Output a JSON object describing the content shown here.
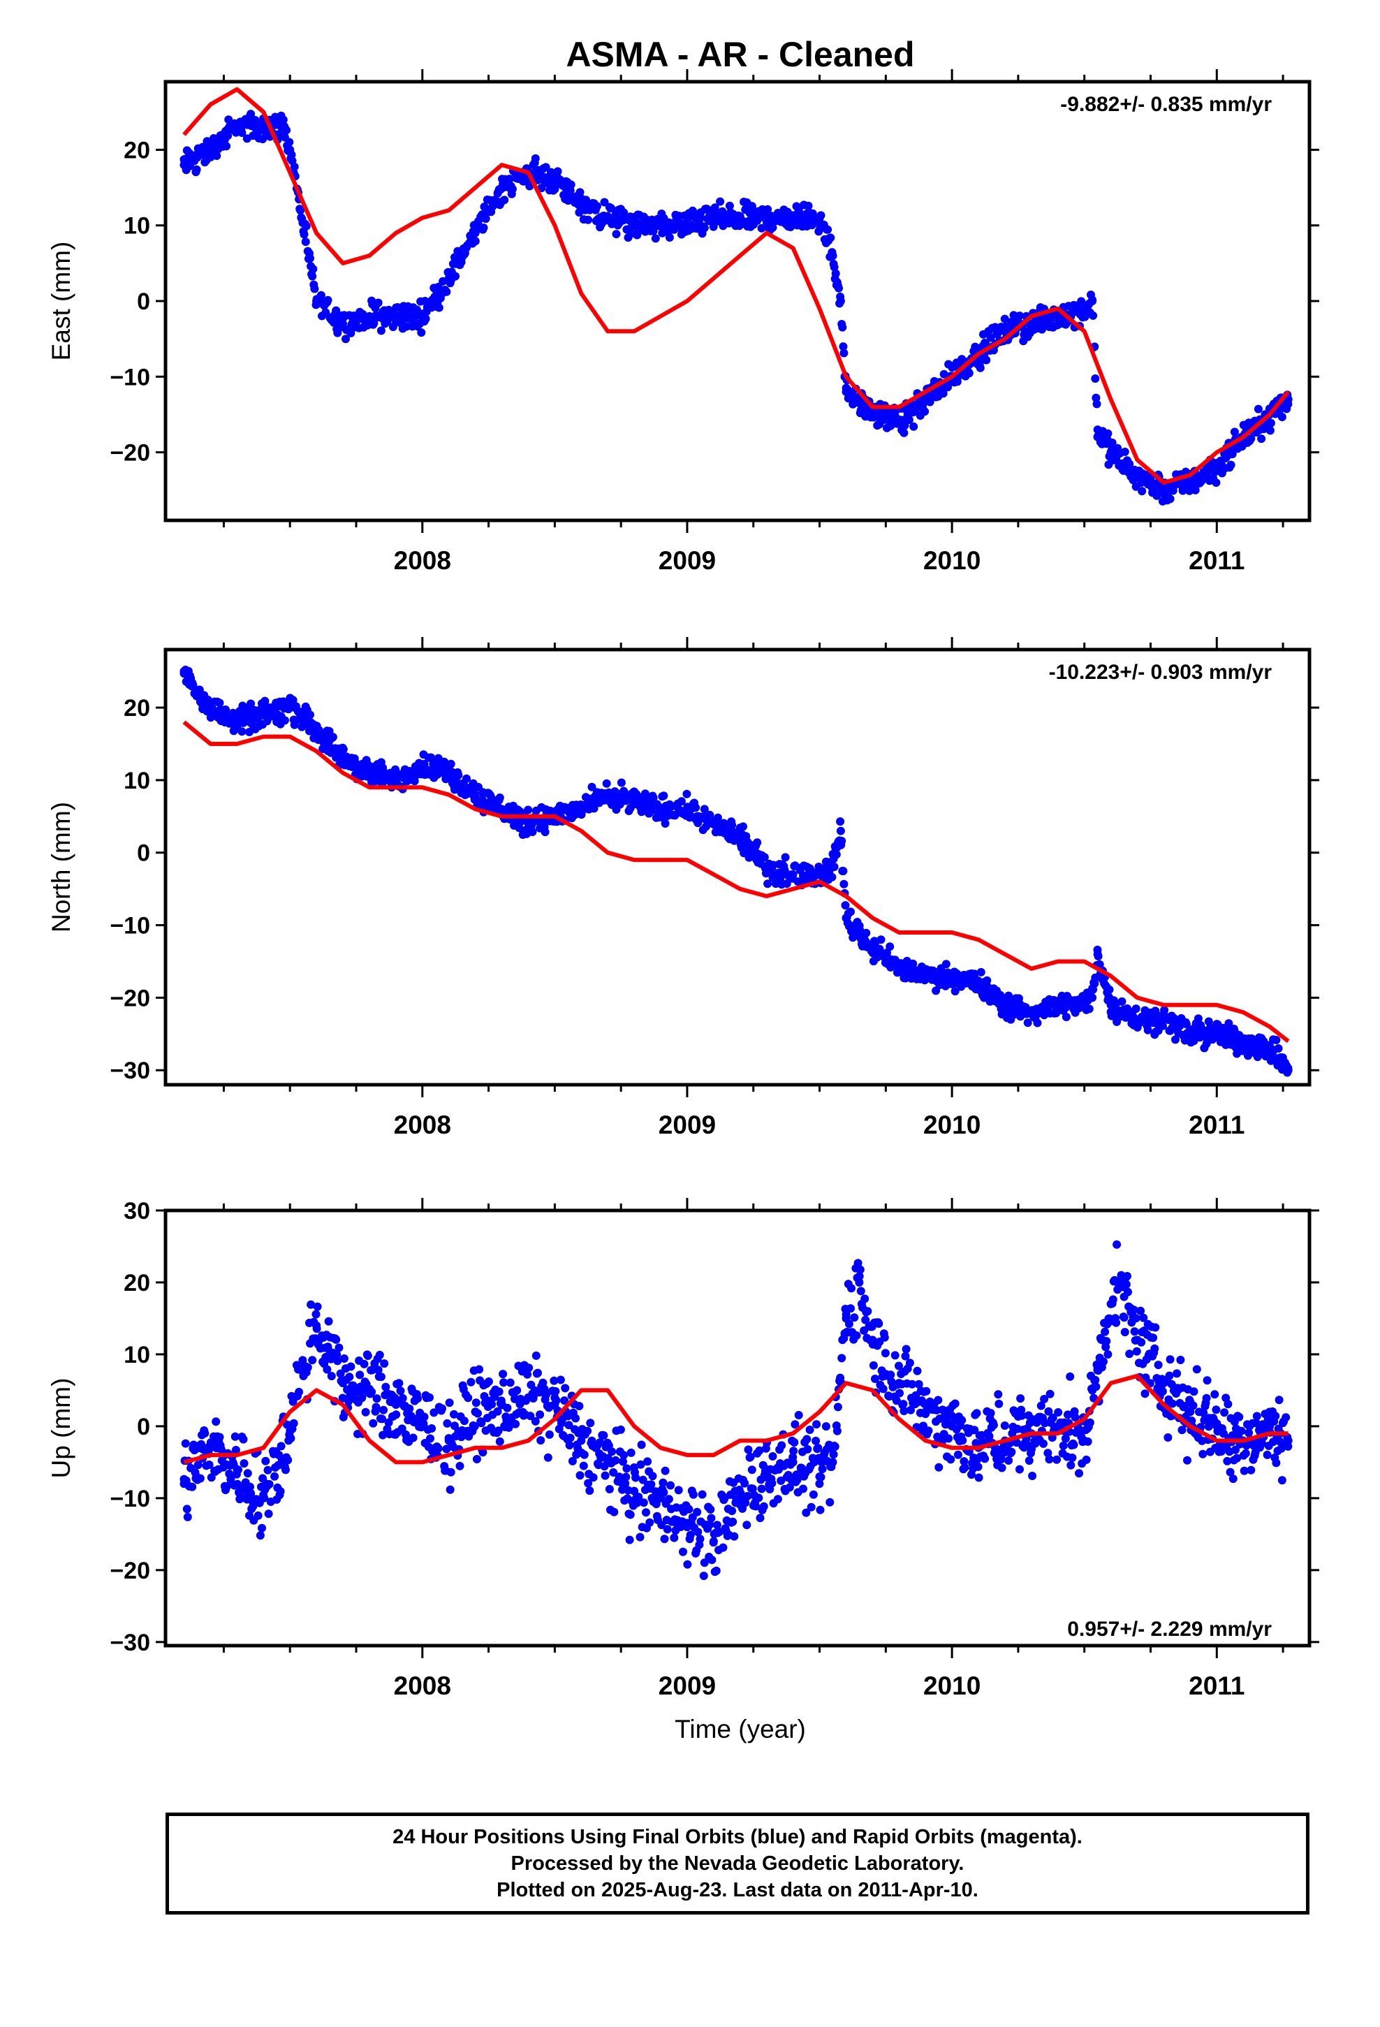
{
  "title": "ASMA  - AR - Cleaned",
  "xlabel": "Time (year)",
  "footer": {
    "line1": "24 Hour Positions Using Final Orbits (blue) and Rapid Orbits (magenta).",
    "line2": "Processed by the Nevada Geodetic Laboratory.",
    "line3": "Plotted on 2025-Aug-23. Last data on 2011-Apr-10."
  },
  "colors": {
    "data": "#0000ff",
    "model": "#ff0000",
    "frame": "#000000"
  },
  "chart_data": [
    {
      "type": "scatter",
      "ylabel": "East (mm)",
      "rate_text": "-9.882+/- 0.835 mm/yr",
      "xlim": [
        2007.03,
        2011.35
      ],
      "ylim": [
        -29,
        29
      ],
      "xticks": [
        2008,
        2009,
        2010,
        2011
      ],
      "yticks": [
        -20,
        -10,
        0,
        10,
        20
      ],
      "series": [
        {
          "kind": "points",
          "x": [
            2007.1,
            2007.2,
            2007.3,
            2007.4,
            2007.48,
            2007.5,
            2007.6,
            2007.7,
            2007.8,
            2007.9,
            2008.0,
            2008.1,
            2008.2,
            2008.3,
            2008.4,
            2008.5,
            2008.6,
            2008.7,
            2008.8,
            2008.9,
            2009.0,
            2009.1,
            2009.2,
            2009.3,
            2009.4,
            2009.5,
            2009.55,
            2009.58,
            2009.6,
            2009.7,
            2009.8,
            2009.9,
            2010.0,
            2010.1,
            2010.2,
            2010.3,
            2010.4,
            2010.5,
            2010.53,
            2010.55,
            2010.6,
            2010.7,
            2010.8,
            2010.9,
            2011.0,
            2011.1,
            2011.2,
            2011.27
          ],
          "y": [
            18,
            20,
            23,
            23,
            23,
            20,
            0,
            -3,
            -2,
            -2,
            -2,
            3,
            9,
            15,
            17,
            16,
            13,
            11,
            10,
            10,
            10,
            11,
            11,
            11,
            11,
            11,
            6,
            0,
            -12,
            -15,
            -16,
            -13,
            -10,
            -7,
            -4,
            -3,
            -2,
            -1,
            0,
            -17,
            -20,
            -23,
            -25,
            -24,
            -22,
            -18,
            -15,
            -13
          ]
        },
        {
          "kind": "line",
          "x": [
            2007.1,
            2007.2,
            2007.3,
            2007.4,
            2007.5,
            2007.6,
            2007.7,
            2007.8,
            2007.9,
            2008.0,
            2008.1,
            2008.2,
            2008.3,
            2008.4,
            2008.5,
            2008.6,
            2008.7,
            2008.8,
            2008.9,
            2009.0,
            2009.1,
            2009.2,
            2009.3,
            2009.4,
            2009.5,
            2009.6,
            2009.7,
            2009.8,
            2009.9,
            2010.0,
            2010.1,
            2010.2,
            2010.3,
            2010.4,
            2010.5,
            2010.6,
            2010.7,
            2010.8,
            2010.9,
            2011.0,
            2011.1,
            2011.2,
            2011.27
          ],
          "y": [
            22,
            26,
            28,
            25,
            17,
            9,
            5,
            6,
            9,
            11,
            12,
            15,
            18,
            17,
            10,
            1,
            -4,
            -4,
            -2,
            0,
            3,
            6,
            9,
            7,
            -1,
            -10,
            -14,
            -14,
            -12,
            -10,
            -7,
            -5,
            -2,
            -1,
            -4,
            -13,
            -21,
            -24,
            -23,
            -20,
            -18,
            -15,
            -12
          ]
        }
      ]
    },
    {
      "type": "scatter",
      "ylabel": "North (mm)",
      "rate_text": "-10.223+/- 0.903 mm/yr",
      "xlim": [
        2007.03,
        2011.35
      ],
      "ylim": [
        -32,
        28
      ],
      "xticks": [
        2008,
        2009,
        2010,
        2011
      ],
      "yticks": [
        -30,
        -20,
        -10,
        0,
        10,
        20
      ],
      "series": [
        {
          "kind": "points",
          "x": [
            2007.1,
            2007.2,
            2007.3,
            2007.4,
            2007.5,
            2007.6,
            2007.7,
            2007.8,
            2007.9,
            2008.0,
            2008.1,
            2008.2,
            2008.3,
            2008.4,
            2008.5,
            2008.6,
            2008.7,
            2008.8,
            2008.9,
            2009.0,
            2009.1,
            2009.2,
            2009.3,
            2009.4,
            2009.5,
            2009.55,
            2009.58,
            2009.6,
            2009.7,
            2009.8,
            2009.9,
            2010.0,
            2010.1,
            2010.2,
            2010.3,
            2010.4,
            2010.5,
            2010.53,
            2010.55,
            2010.6,
            2010.7,
            2010.8,
            2010.9,
            2011.0,
            2011.1,
            2011.2,
            2011.27
          ],
          "y": [
            25,
            20,
            18,
            19,
            20,
            17,
            13,
            11,
            10,
            12,
            11,
            8,
            6,
            4,
            5,
            6,
            8,
            7,
            6,
            6,
            4,
            2,
            -2,
            -3,
            -3,
            -2,
            3,
            -9,
            -13,
            -16,
            -17,
            -17,
            -18,
            -21,
            -22,
            -21,
            -21,
            -20,
            -14,
            -21,
            -23,
            -23,
            -25,
            -25,
            -26,
            -27,
            -30
          ]
        },
        {
          "kind": "line",
          "x": [
            2007.1,
            2007.2,
            2007.3,
            2007.4,
            2007.5,
            2007.6,
            2007.7,
            2007.8,
            2007.9,
            2008.0,
            2008.1,
            2008.2,
            2008.3,
            2008.4,
            2008.5,
            2008.6,
            2008.7,
            2008.8,
            2008.9,
            2009.0,
            2009.1,
            2009.2,
            2009.3,
            2009.4,
            2009.5,
            2009.6,
            2009.7,
            2009.8,
            2009.9,
            2010.0,
            2010.1,
            2010.2,
            2010.3,
            2010.4,
            2010.5,
            2010.6,
            2010.7,
            2010.8,
            2010.9,
            2011.0,
            2011.1,
            2011.2,
            2011.27
          ],
          "y": [
            18,
            15,
            15,
            16,
            16,
            14,
            11,
            9,
            9,
            9,
            8,
            6,
            5,
            5,
            5,
            3,
            0,
            -1,
            -1,
            -1,
            -3,
            -5,
            -6,
            -5,
            -4,
            -6,
            -9,
            -11,
            -11,
            -11,
            -12,
            -14,
            -16,
            -15,
            -15,
            -17,
            -20,
            -21,
            -21,
            -21,
            -22,
            -24,
            -26
          ]
        }
      ]
    },
    {
      "type": "scatter",
      "ylabel": "Up (mm)",
      "rate_text": "0.957+/- 2.229 mm/yr",
      "xlim": [
        2007.03,
        2011.35
      ],
      "ylim": [
        -30.5,
        30
      ],
      "xticks": [
        2008,
        2009,
        2010,
        2011
      ],
      "yticks": [
        -30,
        -20,
        -10,
        0,
        10,
        20,
        30
      ],
      "series": [
        {
          "kind": "points",
          "x": [
            2007.1,
            2007.2,
            2007.3,
            2007.4,
            2007.5,
            2007.55,
            2007.6,
            2007.65,
            2007.7,
            2007.8,
            2007.9,
            2008.0,
            2008.1,
            2008.2,
            2008.3,
            2008.4,
            2008.5,
            2008.6,
            2008.7,
            2008.8,
            2008.9,
            2009.0,
            2009.1,
            2009.2,
            2009.3,
            2009.4,
            2009.5,
            2009.55,
            2009.6,
            2009.65,
            2009.7,
            2009.8,
            2009.9,
            2010.0,
            2010.1,
            2010.2,
            2010.3,
            2010.4,
            2010.5,
            2010.55,
            2010.6,
            2010.65,
            2010.7,
            2010.8,
            2010.9,
            2011.0,
            2011.1,
            2011.2,
            2011.27
          ],
          "y": [
            -8,
            -3,
            -6,
            -10,
            0,
            8,
            14,
            10,
            6,
            5,
            3,
            0,
            -2,
            2,
            3,
            4,
            3,
            -2,
            -5,
            -9,
            -10,
            -14,
            -16,
            -10,
            -6,
            -5,
            -7,
            -5,
            15,
            20,
            12,
            6,
            2,
            0,
            -3,
            -2,
            -1,
            0,
            -2,
            8,
            17,
            18,
            12,
            6,
            2,
            0,
            -2,
            0,
            -2
          ]
        },
        {
          "kind": "line",
          "x": [
            2007.1,
            2007.2,
            2007.3,
            2007.4,
            2007.5,
            2007.6,
            2007.7,
            2007.8,
            2007.9,
            2008.0,
            2008.1,
            2008.2,
            2008.3,
            2008.4,
            2008.5,
            2008.6,
            2008.7,
            2008.8,
            2008.9,
            2009.0,
            2009.1,
            2009.2,
            2009.3,
            2009.4,
            2009.5,
            2009.6,
            2009.7,
            2009.8,
            2009.9,
            2010.0,
            2010.1,
            2010.2,
            2010.3,
            2010.4,
            2010.5,
            2010.6,
            2010.7,
            2010.8,
            2010.9,
            2011.0,
            2011.1,
            2011.2,
            2011.27
          ],
          "y": [
            -5,
            -4,
            -4,
            -3,
            2,
            5,
            3,
            -2,
            -5,
            -5,
            -4,
            -3,
            -3,
            -2,
            1,
            5,
            5,
            0,
            -3,
            -4,
            -4,
            -2,
            -2,
            -1,
            2,
            6,
            5,
            1,
            -2,
            -3,
            -3,
            -2,
            -1,
            -1,
            1,
            6,
            7,
            3,
            0,
            -2,
            -2,
            -1,
            -1
          ]
        }
      ]
    }
  ]
}
